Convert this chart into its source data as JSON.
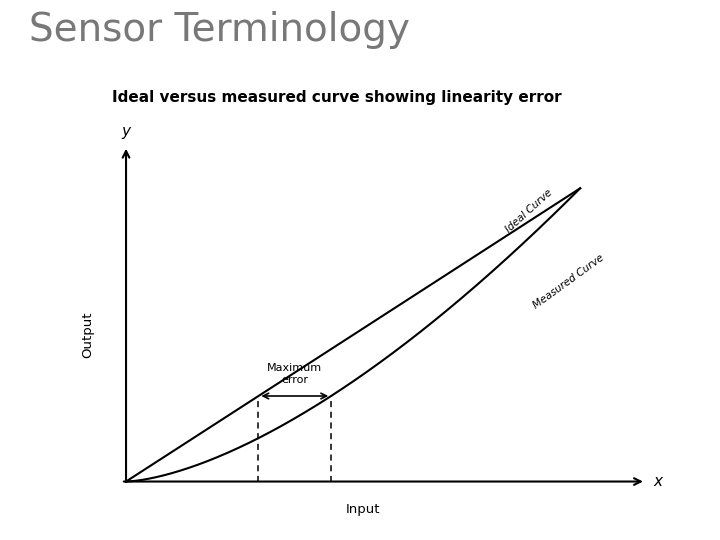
{
  "title": "Sensor Terminology",
  "subtitle": "Ideal versus measured curve showing linearity error",
  "title_color": "#787878",
  "title_fontsize": 28,
  "subtitle_fontsize": 11,
  "header_bar_color": "#a8bccf",
  "header_accent_color": "#c07840",
  "bg_color": "#ffffff",
  "xlabel": "Input",
  "ylabel": "Output",
  "axis_label_x": "x",
  "axis_label_y": "y",
  "ideal_label": "Ideal Curve",
  "measured_label": "Measured Curve",
  "max_error_label": "Maximum\nerror"
}
